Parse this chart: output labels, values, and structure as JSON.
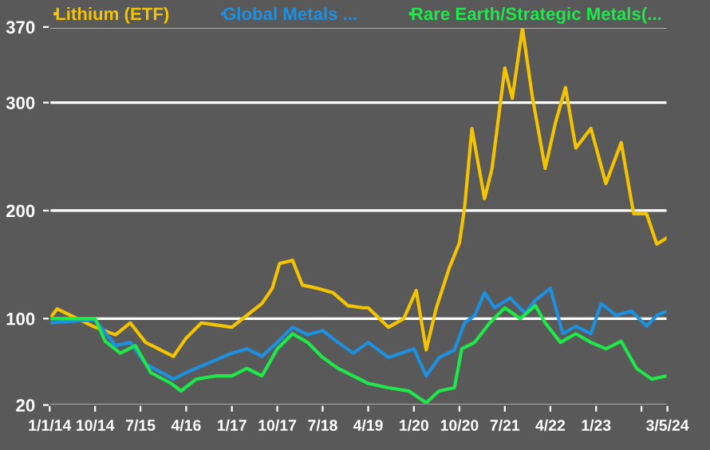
{
  "chart_data": {
    "type": "line",
    "xlim": [
      "2014-01-01",
      "2024-03-05"
    ],
    "xticks": [
      {
        "value": "2014-01-01",
        "label": "1/1/14"
      },
      {
        "value": "2014-10-01",
        "label": "10/14"
      },
      {
        "value": "2015-07-01",
        "label": "7/15"
      },
      {
        "value": "2016-04-01",
        "label": "4/16"
      },
      {
        "value": "2017-01-01",
        "label": "1/17"
      },
      {
        "value": "2017-10-01",
        "label": "10/17"
      },
      {
        "value": "2018-07-01",
        "label": "7/18"
      },
      {
        "value": "2019-04-01",
        "label": "4/19"
      },
      {
        "value": "2020-01-01",
        "label": "1/20"
      },
      {
        "value": "2020-10-01",
        "label": "10/20"
      },
      {
        "value": "2021-07-01",
        "label": "7/21"
      },
      {
        "value": "2022-04-01",
        "label": "4/22"
      },
      {
        "value": "2023-01-01",
        "label": "1/23"
      },
      {
        "value": "2023-10-01",
        "label": null
      },
      {
        "value": "2024-03-05",
        "label": "3/5/24"
      }
    ],
    "ylim": [
      20,
      370
    ],
    "yticks": [
      20,
      100,
      200,
      300,
      370
    ],
    "grid": "y",
    "legend": "top",
    "series": [
      {
        "name": "Lithium (ETF)",
        "color": "#f5c400",
        "x": [
          "2014-01-01",
          "2014-02-15",
          "2014-10-01",
          "2015-02-01",
          "2015-05-01",
          "2015-08-01",
          "2016-01-15",
          "2016-04-01",
          "2016-07-01",
          "2017-01-01",
          "2017-04-01",
          "2017-07-01",
          "2017-09-01",
          "2017-10-15",
          "2018-01-01",
          "2018-03-01",
          "2018-06-01",
          "2018-09-01",
          "2018-12-01",
          "2019-03-01",
          "2019-04-01",
          "2019-08-01",
          "2019-11-01",
          "2020-01-15",
          "2020-03-15",
          "2020-05-15",
          "2020-08-01",
          "2020-10-01",
          "2020-11-01",
          "2020-12-15",
          "2021-03-01",
          "2021-04-15",
          "2021-07-01",
          "2021-08-15",
          "2021-10-15",
          "2021-12-15",
          "2022-03-01",
          "2022-05-01",
          "2022-07-01",
          "2022-09-01",
          "2022-12-01",
          "2023-03-01",
          "2023-06-01",
          "2023-08-15",
          "2023-11-01",
          "2024-01-01",
          "2024-03-05"
        ],
        "values": [
          100,
          109,
          92,
          85,
          96,
          78,
          65,
          82,
          96,
          92,
          103,
          114,
          128,
          151,
          154,
          131,
          128,
          124,
          112,
          110,
          110,
          92,
          100,
          126,
          71,
          110,
          147,
          170,
          203,
          276,
          211,
          239,
          332,
          304,
          369,
          304,
          239,
          281,
          314,
          258,
          276,
          225,
          263,
          197,
          197,
          169,
          175
        ]
      },
      {
        "name": "Global Metals ...",
        "color": "#1e90e0",
        "x": [
          "2014-01-01",
          "2014-10-01",
          "2015-02-01",
          "2015-05-01",
          "2015-08-01",
          "2016-01-15",
          "2016-04-01",
          "2016-08-01",
          "2017-01-01",
          "2017-04-01",
          "2017-07-01",
          "2017-10-01",
          "2018-01-01",
          "2018-04-01",
          "2018-07-01",
          "2018-10-01",
          "2019-01-01",
          "2019-04-01",
          "2019-08-01",
          "2020-01-01",
          "2020-03-15",
          "2020-06-01",
          "2020-09-01",
          "2020-11-01",
          "2021-01-01",
          "2021-03-01",
          "2021-05-01",
          "2021-08-01",
          "2021-11-01",
          "2022-01-01",
          "2022-04-01",
          "2022-06-15",
          "2022-09-01",
          "2022-12-01",
          "2023-02-01",
          "2023-05-01",
          "2023-08-01",
          "2023-11-01",
          "2024-01-01",
          "2024-03-05"
        ],
        "values": [
          96,
          99,
          75,
          78,
          58,
          44,
          50,
          58,
          68,
          72,
          65,
          78,
          92,
          85,
          89,
          78,
          68,
          78,
          64,
          72,
          47,
          64,
          71,
          96,
          103,
          124,
          110,
          119,
          105,
          117,
          128,
          86,
          93,
          86,
          114,
          103,
          107,
          93,
          103,
          107
        ]
      },
      {
        "name": "Rare Earth/Strategic Metals(...",
        "color": "#1fe84a",
        "x": [
          "2014-01-01",
          "2014-10-01",
          "2014-12-01",
          "2015-03-01",
          "2015-06-01",
          "2015-09-01",
          "2016-01-01",
          "2016-03-01",
          "2016-06-01",
          "2016-10-01",
          "2017-01-01",
          "2017-04-01",
          "2017-07-01",
          "2017-10-01",
          "2018-01-01",
          "2018-04-01",
          "2018-07-01",
          "2018-10-01",
          "2019-01-01",
          "2019-04-01",
          "2019-08-01",
          "2019-12-01",
          "2020-03-15",
          "2020-06-01",
          "2020-09-01",
          "2020-10-15",
          "2021-01-01",
          "2021-04-01",
          "2021-07-01",
          "2021-10-01",
          "2022-01-01",
          "2022-03-01",
          "2022-06-01",
          "2022-09-01",
          "2022-12-01",
          "2023-03-01",
          "2023-06-01",
          "2023-09-01",
          "2023-12-01",
          "2024-03-05"
        ],
        "values": [
          100,
          100,
          79,
          68,
          75,
          50,
          40,
          33,
          44,
          47,
          47,
          54,
          47,
          72,
          86,
          78,
          64,
          54,
          47,
          40,
          36,
          33,
          22,
          33,
          36,
          72,
          78,
          96,
          110,
          100,
          112,
          96,
          78,
          86,
          78,
          72,
          79,
          54,
          44,
          47
        ]
      }
    ]
  }
}
